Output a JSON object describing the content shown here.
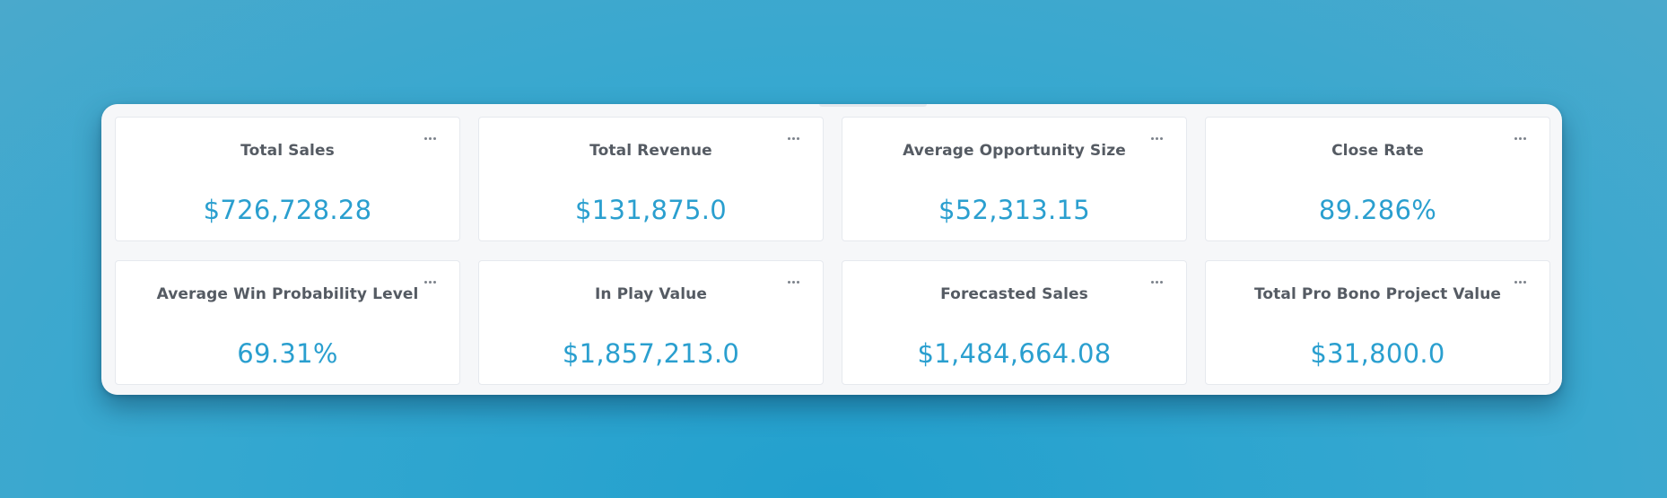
{
  "dashboard": {
    "cards": [
      {
        "title": "Total Sales",
        "value": "$726,728.28"
      },
      {
        "title": "Total Revenue",
        "value": "$131,875.0"
      },
      {
        "title": "Average Opportunity Size",
        "value": "$52,313.15"
      },
      {
        "title": "Close Rate",
        "value": "89.286%"
      },
      {
        "title": "Average Win Probability Level",
        "value": "69.31%"
      },
      {
        "title": "In Play Value",
        "value": "$1,857,213.0"
      },
      {
        "title": "Forecasted Sales",
        "value": "$1,484,664.08"
      },
      {
        "title": "Total Pro Bono Project Value",
        "value": "$31,800.0"
      }
    ],
    "card_menu_icon": "more-horizontal-icon",
    "colors": {
      "background": "#2ea3cf",
      "value": "#2a9fcf",
      "title": "#555b63",
      "panel": "#f6f7f9"
    }
  }
}
